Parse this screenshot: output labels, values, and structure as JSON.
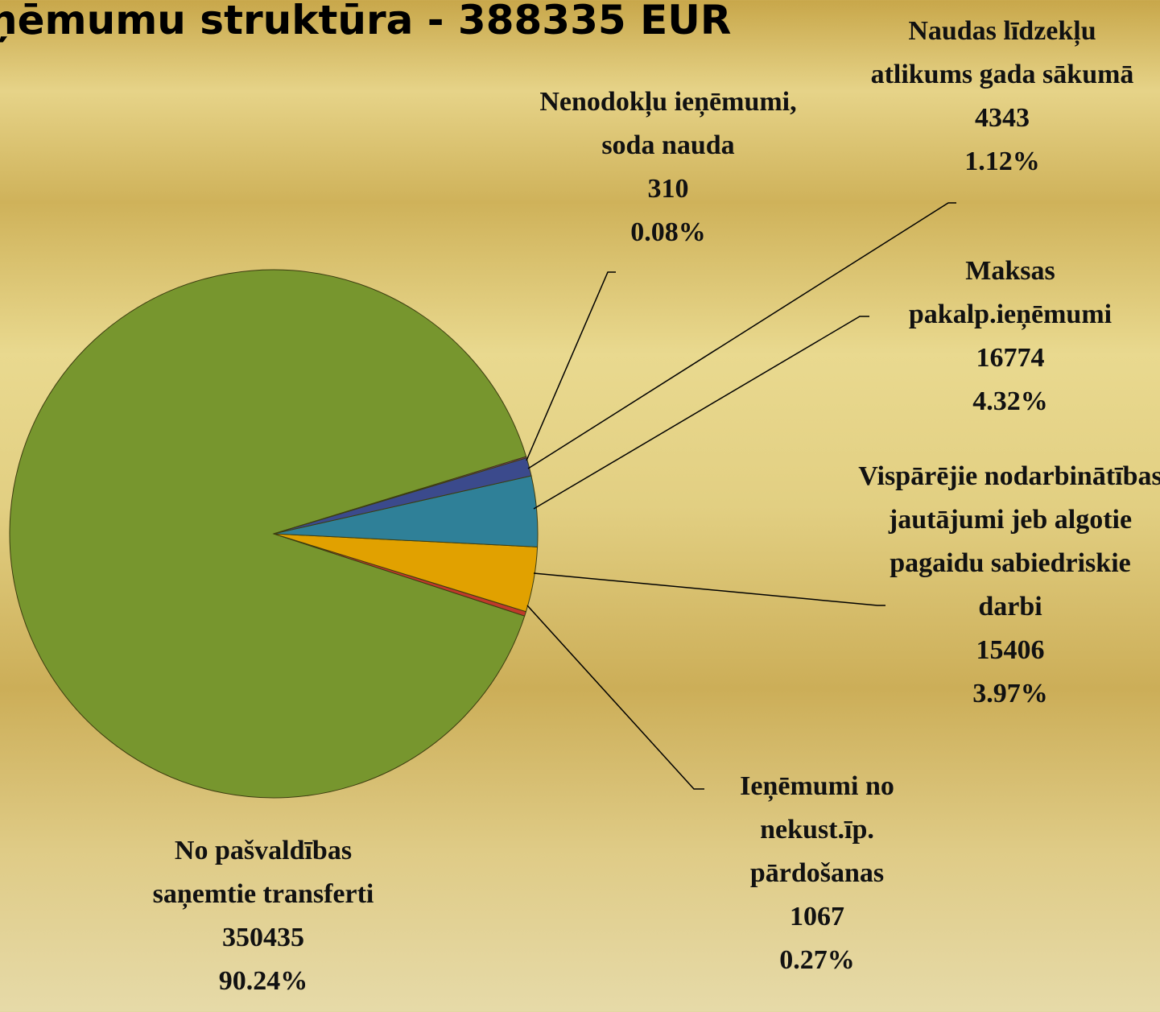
{
  "chart_data": {
    "type": "pie",
    "title": "ņēmumu struktūra - 388335 EUR",
    "categories": [
      "Nenodokļu ieņēmumi, soda nauda",
      "Naudas līdzekļu atlikums gada sākumā",
      "Maksas pakalp.ieņēmumi",
      "Vispārējie nodarbinātības jautājumi jeb algotie pagaidu sabiedriskie darbi",
      "Ieņēmumi no nekust.īp. pārdošanas",
      "No pašvaldības saņemtie transferti"
    ],
    "values": [
      310,
      4343,
      16774,
      15406,
      1067,
      350435
    ],
    "percent_labels": [
      "0.08%",
      "1.12%",
      "4.32%",
      "3.97%",
      "0.27%",
      "90.24%"
    ],
    "colors": [
      "#8a3a7a",
      "#3b4a8c",
      "#2f8098",
      "#e1a100",
      "#c0392b",
      "#77962e"
    ]
  }
}
